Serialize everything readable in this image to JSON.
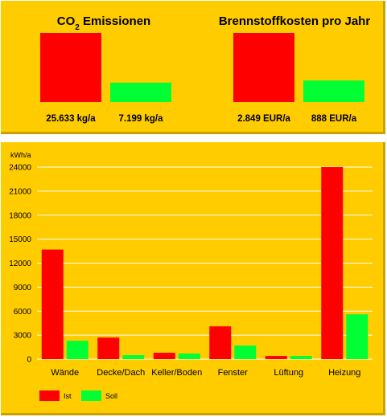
{
  "colors": {
    "ist": "#ff0000",
    "soll": "#00ff33",
    "background": "#ffcc00",
    "grid": "#ffffff"
  },
  "chart_data": [
    {
      "type": "bar",
      "title": "CO₂ Emissionen",
      "categories": [
        "Ist",
        "Soll"
      ],
      "values": [
        25633,
        7199
      ],
      "value_labels": [
        "25.633 kg/a",
        "7.199 kg/a"
      ]
    },
    {
      "type": "bar",
      "title": "Brennstoffkosten pro Jahr",
      "categories": [
        "Ist",
        "Soll"
      ],
      "values": [
        2849,
        888
      ],
      "value_labels": [
        "2.849 EUR/a",
        "888 EUR/a"
      ]
    },
    {
      "type": "bar",
      "ylabel": "kWh/a",
      "ylim": [
        0,
        24000
      ],
      "yticks": [
        0,
        3000,
        6000,
        9000,
        12000,
        15000,
        18000,
        21000,
        24000
      ],
      "ytick_labels": [
        "0",
        "3000",
        "6000",
        "9000",
        "12000",
        "15000",
        "18000",
        "21000",
        "24000"
      ],
      "grid": true,
      "legend": "bottom-left",
      "categories": [
        "Wände",
        "Decke/Dach",
        "Keller/Boden",
        "Fenster",
        "Lüftung",
        "Heizung"
      ],
      "series": [
        {
          "name": "Ist",
          "values": [
            13700,
            2700,
            800,
            4100,
            400,
            24000
          ]
        },
        {
          "name": "Soll",
          "values": [
            2300,
            500,
            700,
            1700,
            400,
            5600
          ]
        }
      ]
    }
  ]
}
